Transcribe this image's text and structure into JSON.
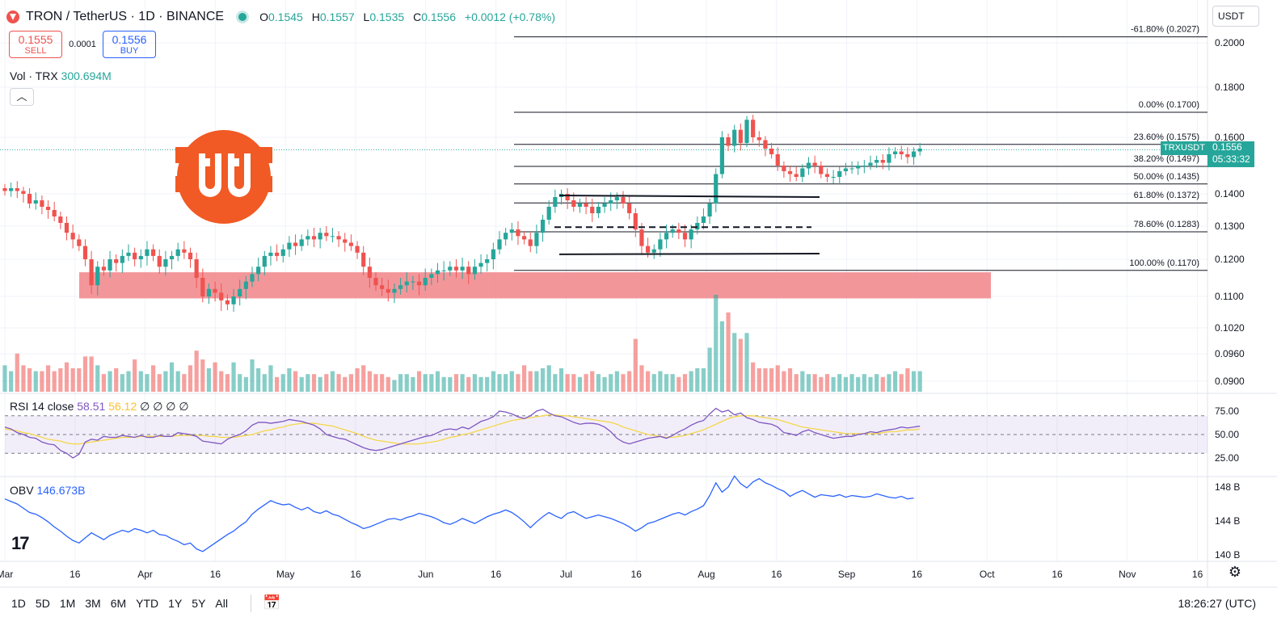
{
  "header": {
    "symbol": "TRON / TetherUS · 1D · BINANCE",
    "ohlc": {
      "o_label": "O",
      "o": "0.1545",
      "h_label": "H",
      "h": "0.1557",
      "l_label": "L",
      "l": "0.1535",
      "c_label": "C",
      "c": "0.1556",
      "change": "+0.0012 (+0.78%)"
    }
  },
  "trade": {
    "sell_price": "0.1555",
    "sell_label": "SELL",
    "spread": "0.0001",
    "buy_price": "0.1556",
    "buy_label": "BUY"
  },
  "volume_legend": {
    "label": "Vol · TRX",
    "value": "300.694M"
  },
  "rsi_legend": {
    "label": "RSI 14 close",
    "rsi": "58.51",
    "ma": "56.12",
    "extra": "∅ ∅ ∅ ∅"
  },
  "obv_legend": {
    "label": "OBV",
    "value": "146.673B"
  },
  "currency": "USDT",
  "price_label": {
    "symbol": "TRXUSDT",
    "price": "0.1556",
    "countdown": "05:33:32"
  },
  "time_ranges": [
    "1D",
    "5D",
    "1M",
    "3M",
    "6M",
    "YTD",
    "1Y",
    "5Y",
    "All"
  ],
  "clock": "18:26:27 (UTC)",
  "colors": {
    "up": "#26a69a",
    "down": "#ef5350",
    "zone": "#f28b8f",
    "rsi": "#7e57c2",
    "rsi_ma": "#f5d64a",
    "obv": "#2962ff"
  },
  "chart_data": {
    "type": "candlestick",
    "x_ticks": [
      "Mar",
      "16",
      "Apr",
      "16",
      "May",
      "16",
      "Jun",
      "16",
      "Jul",
      "16",
      "Aug",
      "16",
      "Sep",
      "16",
      "Oct",
      "16",
      "Nov",
      "16"
    ],
    "y_ticks": [
      "0.2000",
      "0.1800",
      "0.1600",
      "0.1400",
      "0.1300",
      "0.1200",
      "0.1100",
      "0.1020",
      "0.0960",
      "0.0900"
    ],
    "rsi_ticks": [
      "75.00",
      "50.00",
      "25.00"
    ],
    "obv_ticks": [
      "148 B",
      "144 B",
      "140 B"
    ],
    "fib_levels": [
      {
        "label": "-61.80% (0.2027)",
        "value": 0.2027
      },
      {
        "label": "0.00% (0.1700)",
        "value": 0.17
      },
      {
        "label": "23.60% (0.1575)",
        "value": 0.1575
      },
      {
        "label": "38.20% (0.1497)",
        "value": 0.1497
      },
      {
        "label": "50.00% (0.1435)",
        "value": 0.1435
      },
      {
        "label": "61.80% (0.1372)",
        "value": 0.1372
      },
      {
        "label": "78.60% (0.1283)",
        "value": 0.1283
      },
      {
        "label": "100.00% (0.1170)",
        "value": 0.117
      }
    ],
    "support_zone": [
      0.1095,
      0.1165
    ],
    "closes": [
      0.141,
      0.142,
      0.141,
      0.14,
      0.137,
      0.138,
      0.136,
      0.135,
      0.133,
      0.131,
      0.128,
      0.126,
      0.124,
      0.12,
      0.113,
      0.118,
      0.117,
      0.12,
      0.119,
      0.121,
      0.122,
      0.12,
      0.121,
      0.123,
      0.121,
      0.118,
      0.12,
      0.121,
      0.123,
      0.122,
      0.12,
      0.115,
      0.11,
      0.112,
      0.111,
      0.109,
      0.108,
      0.11,
      0.112,
      0.114,
      0.116,
      0.118,
      0.121,
      0.122,
      0.121,
      0.123,
      0.125,
      0.124,
      0.126,
      0.127,
      0.126,
      0.128,
      0.127,
      0.127,
      0.126,
      0.125,
      0.124,
      0.122,
      0.118,
      0.115,
      0.113,
      0.112,
      0.111,
      0.112,
      0.113,
      0.114,
      0.114,
      0.113,
      0.115,
      0.116,
      0.117,
      0.117,
      0.118,
      0.117,
      0.118,
      0.116,
      0.118,
      0.119,
      0.12,
      0.123,
      0.126,
      0.128,
      0.129,
      0.127,
      0.126,
      0.124,
      0.128,
      0.132,
      0.136,
      0.139,
      0.14,
      0.138,
      0.136,
      0.137,
      0.136,
      0.134,
      0.136,
      0.137,
      0.138,
      0.139,
      0.137,
      0.134,
      0.129,
      0.124,
      0.122,
      0.123,
      0.126,
      0.128,
      0.129,
      0.128,
      0.126,
      0.129,
      0.131,
      0.133,
      0.137,
      0.147,
      0.16,
      0.157,
      0.163,
      0.158,
      0.167,
      0.16,
      0.159,
      0.156,
      0.154,
      0.15,
      0.148,
      0.147,
      0.146,
      0.149,
      0.151,
      0.15,
      0.147,
      0.146,
      0.146,
      0.148,
      0.149,
      0.149,
      0.15,
      0.15,
      0.151,
      0.152,
      0.151,
      0.154,
      0.155,
      0.154,
      0.153,
      0.155,
      0.156
    ],
    "rsi": [
      58,
      56,
      52,
      50,
      47,
      46,
      42,
      40,
      39,
      33,
      30,
      25,
      29,
      42,
      45,
      44,
      48,
      47,
      47,
      49,
      48,
      47,
      49,
      47,
      47,
      49,
      48,
      48,
      52,
      51,
      50,
      48,
      43,
      42,
      41,
      40,
      45,
      48,
      50,
      54,
      60,
      63,
      63,
      62,
      63,
      64,
      66,
      65,
      64,
      62,
      60,
      56,
      50,
      48,
      46,
      45,
      42,
      39,
      36,
      34,
      33,
      34,
      36,
      38,
      40,
      42,
      44,
      46,
      48,
      49,
      52,
      55,
      56,
      55,
      58,
      56,
      60,
      64,
      66,
      69,
      75,
      74,
      72,
      69,
      67,
      70,
      75,
      77,
      73,
      70,
      69,
      66,
      63,
      61,
      62,
      62,
      61,
      58,
      53,
      46,
      42,
      40,
      42,
      44,
      46,
      47,
      48,
      46,
      49,
      53,
      56,
      60,
      63,
      65,
      72,
      78,
      74,
      76,
      71,
      73,
      68,
      66,
      63,
      62,
      61,
      58,
      52,
      51,
      49,
      53,
      55,
      52,
      50,
      48,
      46,
      47,
      48,
      48,
      50,
      51,
      53,
      52,
      54,
      55,
      56,
      58,
      57,
      58,
      59
    ],
    "rsi_ma": [
      56,
      55,
      54,
      52,
      51,
      49,
      47,
      45,
      44,
      43,
      41,
      40,
      40,
      41,
      42,
      43,
      44,
      45,
      46,
      47,
      47,
      47,
      48,
      48,
      48,
      48,
      48,
      48,
      49,
      49,
      49,
      49,
      49,
      48,
      48,
      47,
      47,
      47,
      48,
      49,
      50,
      52,
      54,
      55,
      57,
      58,
      60,
      61,
      62,
      62,
      62,
      61,
      60,
      59,
      57,
      55,
      53,
      51,
      48,
      46,
      44,
      43,
      42,
      41,
      40,
      40,
      40,
      40,
      41,
      42,
      43,
      45,
      47,
      48,
      50,
      51,
      53,
      55,
      57,
      59,
      61,
      63,
      65,
      66,
      67,
      68,
      69,
      70,
      71,
      71,
      70,
      70,
      69,
      68,
      67,
      66,
      65,
      64,
      63,
      61,
      58,
      56,
      54,
      52,
      50,
      49,
      48,
      47,
      47,
      48,
      49,
      51,
      53,
      55,
      58,
      61,
      64,
      67,
      69,
      70,
      70,
      70,
      69,
      68,
      67,
      66,
      64,
      62,
      60,
      58,
      57,
      56,
      55,
      54,
      53,
      52,
      51,
      51,
      51,
      51,
      51,
      51,
      52,
      53,
      53,
      54,
      55,
      55,
      56
    ],
    "obv": [
      146.6,
      146.3,
      146.0,
      145.5,
      145.0,
      144.8,
      144.4,
      143.9,
      143.3,
      142.8,
      142.2,
      141.7,
      141.4,
      142.0,
      142.6,
      142.2,
      141.8,
      142.3,
      142.6,
      142.9,
      142.7,
      143.1,
      142.9,
      142.6,
      142.9,
      142.4,
      142.3,
      141.9,
      141.6,
      141.2,
      141.4,
      140.7,
      140.4,
      140.9,
      141.4,
      141.9,
      142.4,
      142.8,
      143.4,
      143.9,
      144.8,
      145.4,
      145.9,
      146.4,
      146.1,
      145.9,
      146.0,
      145.6,
      145.3,
      145.6,
      145.1,
      144.9,
      145.2,
      144.8,
      144.6,
      144.2,
      143.8,
      143.5,
      143.1,
      143.3,
      143.6,
      143.9,
      144.2,
      144.3,
      144.1,
      144.4,
      144.6,
      144.9,
      144.7,
      144.5,
      144.2,
      143.8,
      143.6,
      143.9,
      144.3,
      144.0,
      143.7,
      144.1,
      144.5,
      144.8,
      145.0,
      145.3,
      145.0,
      144.5,
      143.9,
      143.2,
      143.9,
      144.5,
      145.0,
      144.6,
      144.3,
      144.9,
      145.1,
      144.7,
      144.3,
      144.5,
      144.7,
      144.5,
      144.3,
      144.0,
      143.7,
      143.3,
      142.8,
      143.2,
      143.7,
      143.9,
      144.2,
      144.5,
      144.8,
      145.0,
      144.7,
      145.1,
      145.4,
      145.8,
      147.0,
      148.5,
      147.4,
      148.0,
      149.3,
      148.4,
      147.9,
      148.6,
      149.0,
      148.5,
      148.2,
      147.8,
      147.5,
      146.9,
      147.3,
      147.6,
      147.2,
      146.8,
      147.1,
      147.0,
      146.9,
      147.1,
      146.8,
      147.0,
      146.9,
      146.8,
      146.9,
      147.2,
      147.0,
      146.8,
      146.7,
      146.9,
      146.6,
      146.7
    ],
    "volumes": [
      0.9,
      0.7,
      1.3,
      0.9,
      0.8,
      0.7,
      0.7,
      0.9,
      0.7,
      0.8,
      1.0,
      0.8,
      0.8,
      1.2,
      1.2,
      0.9,
      0.6,
      0.7,
      0.8,
      0.6,
      0.7,
      1.1,
      0.7,
      0.6,
      0.9,
      0.6,
      0.7,
      1.0,
      0.7,
      0.6,
      0.9,
      1.4,
      1.1,
      0.8,
      1.0,
      0.7,
      0.6,
      1.0,
      0.6,
      0.5,
      1.1,
      0.8,
      0.6,
      0.9,
      0.5,
      0.6,
      0.8,
      0.7,
      0.5,
      0.6,
      0.6,
      0.5,
      0.6,
      0.7,
      0.6,
      0.5,
      0.6,
      0.8,
      0.9,
      0.7,
      0.6,
      0.6,
      0.5,
      0.4,
      0.6,
      0.6,
      0.5,
      0.7,
      0.6,
      0.6,
      0.7,
      0.5,
      0.5,
      0.6,
      0.6,
      0.5,
      0.6,
      0.5,
      0.5,
      0.7,
      0.6,
      0.6,
      0.7,
      0.6,
      0.9,
      0.7,
      0.7,
      0.8,
      0.9,
      0.6,
      0.8,
      0.6,
      0.6,
      0.5,
      0.6,
      0.7,
      0.6,
      0.5,
      0.6,
      0.7,
      0.6,
      0.7,
      1.8,
      0.9,
      0.7,
      0.6,
      0.7,
      0.6,
      0.6,
      0.5,
      0.6,
      0.7,
      0.8,
      0.8,
      1.5,
      3.3,
      2.4,
      2.7,
      2.0,
      1.8,
      2.0,
      1.0,
      0.8,
      0.8,
      0.8,
      0.9,
      0.7,
      0.8,
      0.6,
      0.7,
      0.6,
      0.6,
      0.5,
      0.6,
      0.5,
      0.6,
      0.5,
      0.6,
      0.5,
      0.6,
      0.5,
      0.6,
      0.5,
      0.6,
      0.7,
      0.6,
      0.8,
      0.7,
      0.7
    ]
  }
}
